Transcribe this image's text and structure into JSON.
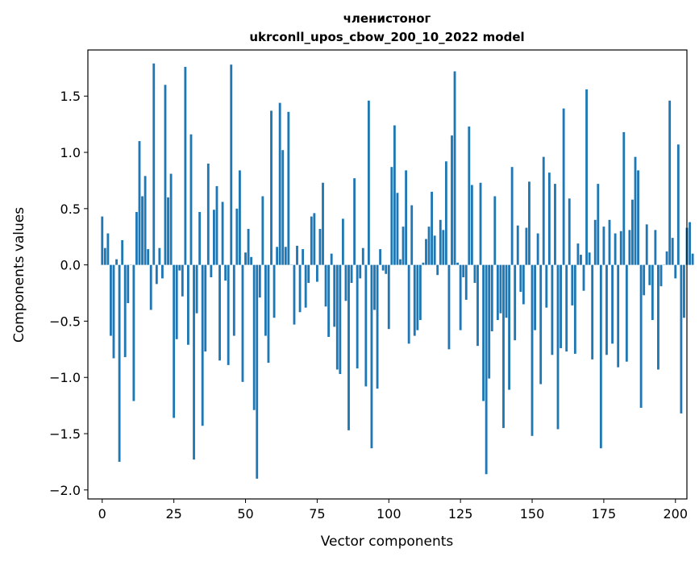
{
  "chart_data": {
    "type": "bar",
    "title": "членистоног",
    "subtitle": "ukrconll_upos_cbow_200_10_2022 model",
    "xlabel": "Vector components",
    "ylabel": "Components values",
    "xlim": [
      -5,
      204
    ],
    "ylim": [
      -2.08,
      1.91
    ],
    "xticks": [
      0,
      25,
      50,
      75,
      100,
      125,
      150,
      175,
      200
    ],
    "yticks": [
      -2.0,
      -1.5,
      -1.0,
      -0.5,
      0.0,
      0.5,
      1.0,
      1.5
    ],
    "ytick_labels": [
      "−2.0",
      "−1.5",
      "−1.0",
      "−0.5",
      "0.0",
      "0.5",
      "1.0",
      "1.5"
    ],
    "bar_color": "#1f77b4",
    "values": [
      0.43,
      0.15,
      0.28,
      -0.63,
      -0.83,
      0.05,
      -1.75,
      0.22,
      -0.82,
      -0.34,
      0.0,
      -1.21,
      0.47,
      1.1,
      0.61,
      0.79,
      0.14,
      -0.4,
      1.79,
      -0.17,
      0.15,
      -0.12,
      1.6,
      0.6,
      0.81,
      -1.36,
      -0.66,
      -0.05,
      -0.28,
      1.76,
      -0.71,
      1.16,
      -1.73,
      -0.43,
      0.47,
      -1.43,
      -0.77,
      0.9,
      -0.11,
      0.49,
      0.7,
      -0.85,
      0.56,
      -0.14,
      -0.89,
      1.78,
      -0.63,
      0.5,
      0.84,
      -1.04,
      0.11,
      0.32,
      0.07,
      -1.29,
      -1.9,
      -0.29,
      0.61,
      -0.63,
      -0.87,
      1.37,
      -0.47,
      0.16,
      1.44,
      1.02,
      0.16,
      1.36,
      0.0,
      -0.53,
      0.17,
      -0.42,
      0.14,
      -0.38,
      -0.16,
      0.43,
      0.46,
      -0.15,
      0.32,
      0.73,
      -0.37,
      -0.64,
      0.1,
      -0.55,
      -0.93,
      -0.97,
      0.41,
      -0.32,
      -1.47,
      -0.16,
      0.77,
      -0.92,
      -0.12,
      0.15,
      -1.08,
      1.46,
      -1.63,
      -0.4,
      -1.1,
      0.14,
      -0.05,
      -0.08,
      -0.57,
      0.87,
      1.24,
      0.64,
      0.05,
      0.34,
      0.84,
      -0.7,
      0.53,
      -0.63,
      -0.58,
      -0.49,
      0.02,
      0.23,
      0.34,
      0.65,
      0.26,
      -0.09,
      0.4,
      0.31,
      0.92,
      -0.75,
      1.15,
      1.72,
      0.02,
      -0.58,
      -0.11,
      -0.31,
      1.23,
      0.71,
      -0.16,
      -0.72,
      0.73,
      -1.21,
      -1.86,
      -1.01,
      -0.59,
      0.61,
      -0.49,
      -0.43,
      -1.45,
      -0.47,
      -1.11,
      0.87,
      -0.67,
      0.35,
      -0.24,
      -0.35,
      0.33,
      0.74,
      -1.52,
      -0.58,
      0.28,
      -1.06,
      0.96,
      -0.38,
      0.82,
      -0.8,
      0.72,
      -1.46,
      -0.74,
      1.39,
      -0.77,
      0.59,
      -0.36,
      -0.79,
      0.19,
      0.09,
      -0.23,
      1.56,
      0.11,
      -0.84,
      0.4,
      0.72,
      -1.63,
      0.34,
      -0.8,
      0.4,
      -0.7,
      0.28,
      -0.91,
      0.3,
      1.18,
      -0.86,
      0.31,
      0.58,
      0.96,
      0.84,
      -1.27,
      -0.27,
      0.36,
      -0.18,
      -0.49,
      0.31,
      -0.93,
      -0.19,
      0.0,
      0.12,
      1.46,
      0.24,
      -0.12,
      1.07,
      -1.32,
      -0.47,
      0.33,
      0.38,
      0.1
    ]
  }
}
